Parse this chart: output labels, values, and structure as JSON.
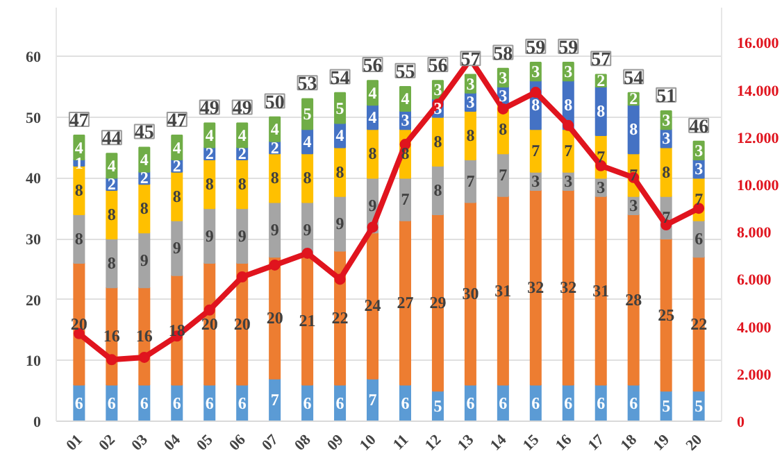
{
  "chart_data": {
    "type": "bar",
    "stacked": true,
    "categories": [
      "01",
      "02",
      "03",
      "04",
      "05",
      "06",
      "07",
      "08",
      "09",
      "10",
      "11",
      "12",
      "13",
      "14",
      "15",
      "16",
      "17",
      "18",
      "19",
      "20"
    ],
    "series": [
      {
        "color": "#5b9bd5",
        "values": [
          6,
          6,
          6,
          6,
          6,
          6,
          7,
          6,
          6,
          7,
          6,
          5,
          6,
          6,
          6,
          6,
          6,
          6,
          5,
          5
        ],
        "value_labels": [
          "6",
          "6",
          "6",
          "6",
          "6",
          "6",
          "7",
          "6",
          "6",
          "7",
          "6",
          "5",
          "6",
          "6",
          "6",
          "6",
          "6",
          "6",
          "5",
          "5"
        ]
      },
      {
        "color": "#ed7d31",
        "values": [
          20,
          16,
          16,
          18,
          20,
          20,
          20,
          21,
          22,
          24,
          27,
          29,
          30,
          31,
          32,
          32,
          31,
          28,
          25,
          22
        ],
        "value_labels": [
          "20",
          "16",
          "16",
          "18",
          "20",
          "20",
          "20",
          "21",
          "22",
          "24",
          "27",
          "29",
          "30",
          "31",
          "32",
          "32",
          "31",
          "28",
          "25",
          "22"
        ]
      },
      {
        "color": "#a5a5a5",
        "values": [
          8,
          8,
          9,
          9,
          9,
          9,
          9,
          9,
          9,
          9,
          7,
          8,
          7,
          7,
          3,
          3,
          3,
          3,
          7,
          6
        ],
        "value_labels": [
          "8",
          "8",
          "9",
          "9",
          "9",
          "9",
          "9",
          "9",
          "9",
          "9",
          "7",
          "8",
          "7",
          "7",
          "3",
          "3",
          "3",
          "3",
          "7",
          "6"
        ]
      },
      {
        "color": "#ffc000",
        "values": [
          8,
          8,
          8,
          8,
          8,
          8,
          8,
          8,
          8,
          8,
          8,
          8,
          8,
          8,
          7,
          7,
          7,
          7,
          8,
          7
        ],
        "value_labels": [
          "8",
          "8",
          "8",
          "8",
          "8",
          "8",
          "8",
          "8",
          "8",
          "8",
          "8",
          "8",
          "8",
          "8",
          "7",
          "7",
          "7",
          "7",
          "8",
          "7"
        ]
      },
      {
        "color": "#4472c4",
        "values": [
          1,
          2,
          2,
          2,
          2,
          2,
          2,
          4,
          4,
          4,
          3,
          3,
          3,
          3,
          8,
          8,
          8,
          8,
          3,
          3
        ],
        "value_labels": [
          "1",
          "2",
          "2",
          "2",
          "2",
          "2",
          "2",
          "4",
          "4",
          "4",
          "3",
          "3",
          "3",
          "3",
          "8",
          "8",
          "8",
          "8",
          "3",
          "3"
        ]
      },
      {
        "color": "#70ad47",
        "values": [
          4,
          4,
          4,
          4,
          4,
          4,
          4,
          5,
          5,
          4,
          4,
          3,
          3,
          3,
          3,
          3,
          2,
          2,
          3,
          3
        ],
        "value_labels": [
          "4",
          "4",
          "4",
          "4",
          "4",
          "4",
          "4",
          "5",
          "5",
          "4",
          "4",
          "3",
          "3",
          "3",
          "3",
          "3",
          "2",
          "2",
          "3",
          "3"
        ]
      },
      {
        "type": "line",
        "axis": "y2",
        "color": "#e0141e",
        "marker": "circle",
        "values": [
          3700,
          2600,
          2700,
          3600,
          4700,
          6100,
          6600,
          7100,
          6000,
          8200,
          11700,
          13400,
          15300,
          13200,
          13900,
          12500,
          10800,
          10300,
          8300,
          9000
        ]
      }
    ],
    "totals": [
      "47",
      "44",
      "45",
      "47",
      "49",
      "49",
      "50",
      "53",
      "54",
      "56",
      "55",
      "56",
      "57",
      "58",
      "59",
      "59",
      "57",
      "54",
      "51",
      "46"
    ],
    "ylim": [
      0,
      68
    ],
    "yticks": [
      0,
      10,
      20,
      30,
      40,
      50,
      60
    ],
    "y2lim": [
      0,
      17480
    ],
    "y2ticks": [
      {
        "value": 0,
        "label": "0"
      },
      {
        "value": 2000,
        "label": "2.000"
      },
      {
        "value": 4000,
        "label": "4.000"
      },
      {
        "value": 6000,
        "label": "6.000"
      },
      {
        "value": 8000,
        "label": "8.000"
      },
      {
        "value": 10000,
        "label": "10.000"
      },
      {
        "value": 12000,
        "label": "12.000"
      },
      {
        "value": 14000,
        "label": "14.000"
      },
      {
        "value": 16000,
        "label": "16.000"
      }
    ],
    "grid": "y"
  }
}
